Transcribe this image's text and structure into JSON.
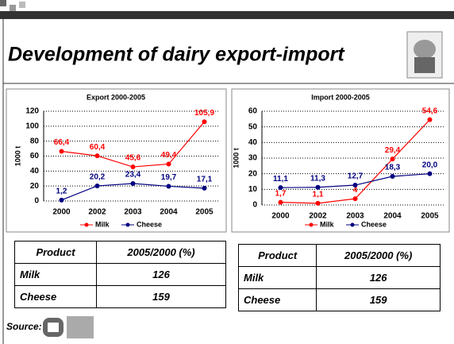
{
  "title": "Development of dairy export-import",
  "chart_data": [
    {
      "type": "line",
      "title": "Export 2000-2005",
      "y_label": "1000 t",
      "categories": [
        "2000",
        "2002",
        "2003",
        "2004",
        "2005"
      ],
      "series": [
        {
          "name": "Milk",
          "color": "#ff0000",
          "values": [
            66.4,
            60.4,
            45.6,
            49.4,
            105.9
          ],
          "value_labels": [
            "66,4",
            "60,4",
            "45,6",
            "49,4",
            "105,9"
          ]
        },
        {
          "name": "Cheese",
          "color": "#000080",
          "values": [
            1.2,
            20.2,
            23.4,
            19.7,
            17.1
          ],
          "value_labels": [
            "1,2",
            "20,2",
            "23,4",
            "19,7",
            "17,1"
          ]
        }
      ],
      "ylim": [
        0,
        120
      ],
      "yticks": [
        0,
        20,
        40,
        60,
        80,
        100,
        120
      ],
      "grid": true,
      "legend": "bottom"
    },
    {
      "type": "line",
      "title": "Import 2000-2005",
      "y_label": "1000 t",
      "categories": [
        "2000",
        "2002",
        "2003",
        "2004",
        "2005"
      ],
      "series": [
        {
          "name": "Milk",
          "color": "#ff0000",
          "values": [
            1.7,
            1.1,
            4,
            29.4,
            54.6
          ],
          "value_labels": [
            "1,7",
            "1,1",
            "4",
            "29,4",
            "54,6"
          ]
        },
        {
          "name": "Cheese",
          "color": "#000080",
          "values": [
            11.1,
            11.3,
            12.7,
            18.3,
            20.0
          ],
          "value_labels": [
            "11,1",
            "11,3",
            "12,7",
            "18,3",
            "20,0"
          ]
        }
      ],
      "ylim": [
        0,
        60
      ],
      "yticks": [
        0,
        10,
        20,
        30,
        40,
        50,
        60
      ],
      "grid": true,
      "legend": "bottom"
    }
  ],
  "tables": [
    {
      "header": [
        "Product",
        "2005/2000 (%)"
      ],
      "rows": [
        [
          "Milk",
          126
        ],
        [
          "Cheese",
          159
        ]
      ]
    },
    {
      "header": [
        "Product",
        "2005/2000 (%)"
      ],
      "rows": [
        [
          "Milk",
          126
        ],
        [
          "Cheese",
          159
        ]
      ]
    }
  ],
  "source": "Source:"
}
